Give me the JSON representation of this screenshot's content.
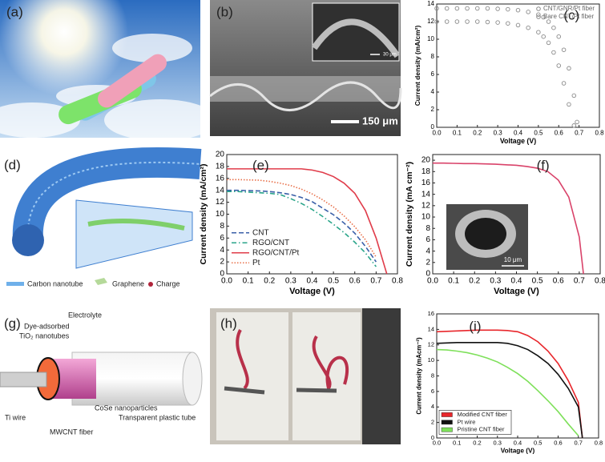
{
  "panels": {
    "a": {
      "label": "(a)"
    },
    "b": {
      "label": "(b)",
      "inset_scale": "30 μm",
      "scale": "150 μm"
    },
    "d": {
      "label": "(d)",
      "legend": [
        "Carbon nanotube",
        "Graphene",
        "Charge"
      ]
    },
    "g": {
      "label": "(g)",
      "texts": [
        "Dye-adsorbed",
        "TiO₂ nanotubes",
        "Electrolyte",
        "Transparent plastic tube",
        "Ti wire",
        "MWCNT fiber",
        "CoSe nanoparticles"
      ]
    },
    "h": {
      "label": "(h)"
    }
  },
  "chart_data": [
    {
      "type": "scatter",
      "label": "(c)",
      "x_label": "Voltage (V)",
      "y_label": "Current density (mA/cm²)",
      "x": [
        0,
        0.05,
        0.1,
        0.15,
        0.2,
        0.25,
        0.3,
        0.35,
        0.4,
        0.45,
        0.5,
        0.525,
        0.55,
        0.575,
        0.6,
        0.625,
        0.65,
        0.675,
        0.69
      ],
      "series": [
        {
          "name": "CNT/GNR/Pt fiber",
          "color": "#8a8a8a",
          "values": [
            13.5,
            13.5,
            13.5,
            13.5,
            13.5,
            13.5,
            13.45,
            13.4,
            13.3,
            13.1,
            12.8,
            12.5,
            12.0,
            11.3,
            10.3,
            8.8,
            6.7,
            3.6,
            0.6
          ]
        },
        {
          "name": "Bare CNT/Pt fiber",
          "color": "#8a8a8a",
          "values": [
            12.0,
            12.0,
            12.0,
            12.0,
            12.0,
            11.95,
            11.9,
            11.8,
            11.6,
            11.3,
            10.8,
            10.3,
            9.6,
            8.5,
            7.0,
            5.0,
            2.6,
            0.2,
            null
          ]
        }
      ],
      "xlim": [
        0,
        0.8
      ],
      "xticks": [
        {
          "value": 0,
          "label": "0.0"
        },
        0.1,
        0.2,
        0.3,
        0.4,
        0.5,
        0.6,
        0.7,
        0.8
      ],
      "ylim": [
        0,
        14
      ],
      "yticks": [
        0,
        2,
        4,
        6,
        8,
        10,
        12,
        14
      ],
      "legend": "upper right"
    },
    {
      "type": "line",
      "label": "(e)",
      "x_label": "Voltage (V)",
      "y_label": "Current density (mA/cm²)",
      "x": [
        0,
        0.05,
        0.1,
        0.15,
        0.2,
        0.25,
        0.3,
        0.35,
        0.4,
        0.45,
        0.5,
        0.55,
        0.6,
        0.65,
        0.7,
        0.75
      ],
      "series": [
        {
          "name": "CNT",
          "color": "#3a5fa8",
          "linestyle": "dashed",
          "values": [
            14.0,
            14.0,
            13.95,
            13.9,
            13.8,
            13.6,
            13.3,
            12.8,
            12.1,
            11.0,
            9.9,
            8.5,
            6.8,
            4.6,
            2.0,
            null
          ]
        },
        {
          "name": "RGO/CNT",
          "color": "#2aa58a",
          "linestyle": "dashdot",
          "values": [
            13.8,
            13.8,
            13.7,
            13.6,
            13.5,
            13.3,
            12.6,
            11.8,
            10.8,
            9.6,
            8.3,
            6.9,
            5.3,
            3.5,
            1.2,
            null
          ]
        },
        {
          "name": "RGO/CNT/Pt",
          "color": "#e03c4a",
          "linestyle": "solid",
          "values": [
            17.6,
            17.6,
            17.6,
            17.6,
            17.6,
            17.6,
            17.6,
            17.6,
            17.4,
            17.0,
            16.3,
            15.2,
            13.5,
            10.6,
            6.0,
            0
          ]
        },
        {
          "name": "Pt",
          "color": "#e8704a",
          "linestyle": "dotted",
          "values": [
            15.8,
            15.8,
            15.75,
            15.7,
            15.5,
            15.2,
            14.8,
            14.2,
            13.4,
            12.4,
            11.2,
            9.7,
            7.9,
            5.7,
            2.8,
            null
          ]
        }
      ],
      "xlim": [
        0,
        0.8
      ],
      "xticks": [
        {
          "value": 0,
          "label": "0.0"
        },
        0.1,
        0.2,
        0.3,
        0.4,
        0.5,
        0.6,
        0.7,
        0.8
      ],
      "ylim": [
        0,
        20
      ],
      "yticks": [
        0,
        2,
        4,
        6,
        8,
        10,
        12,
        14,
        16,
        18,
        20
      ],
      "legend": "lower left",
      "legend_style": "line"
    },
    {
      "type": "line",
      "label": "(f)",
      "x_label": "Voltage (V)",
      "y_label": "Current density (mA cm⁻²)",
      "inset_scale": "10 μm",
      "x": [
        0,
        0.05,
        0.1,
        0.15,
        0.2,
        0.25,
        0.3,
        0.35,
        0.4,
        0.45,
        0.5,
        0.55,
        0.6,
        0.65,
        0.7,
        0.72
      ],
      "series": [
        {
          "color": "#d9436a",
          "linestyle": "solid",
          "values": [
            19.5,
            19.5,
            19.45,
            19.4,
            19.4,
            19.35,
            19.3,
            19.2,
            19.1,
            18.9,
            18.6,
            18.0,
            16.5,
            13.5,
            6.5,
            0
          ]
        }
      ],
      "xlim": [
        0,
        0.8
      ],
      "xticks": [
        {
          "value": 0,
          "label": "0.0"
        },
        0.1,
        0.2,
        0.3,
        0.4,
        0.5,
        0.6,
        0.7,
        0.8
      ],
      "ylim": [
        0,
        21
      ],
      "yticks": [
        0,
        2,
        4,
        6,
        8,
        10,
        12,
        14,
        16,
        18,
        20
      ]
    },
    {
      "type": "line",
      "label": "(i)",
      "x_label": "Voltage (V)",
      "y_label": "Current density (mAcm⁻²)",
      "x": [
        0,
        0.05,
        0.1,
        0.15,
        0.2,
        0.25,
        0.3,
        0.35,
        0.4,
        0.45,
        0.5,
        0.55,
        0.6,
        0.65,
        0.7,
        0.72
      ],
      "series": [
        {
          "name": "Modified CNT fiber",
          "color": "#e8262b",
          "linestyle": "solid",
          "values": [
            13.7,
            13.75,
            13.8,
            13.85,
            13.9,
            13.9,
            13.9,
            13.85,
            13.7,
            13.2,
            12.4,
            11.2,
            9.6,
            7.4,
            4.6,
            0
          ]
        },
        {
          "name": "Pt wire",
          "color": "#111111",
          "linestyle": "solid",
          "values": [
            12.2,
            12.25,
            12.3,
            12.3,
            12.3,
            12.3,
            12.3,
            12.2,
            11.9,
            11.4,
            10.6,
            9.6,
            8.2,
            6.4,
            4.0,
            0
          ]
        },
        {
          "name": "Pristine CNT fiber",
          "color": "#7ee05a",
          "linestyle": "solid",
          "values": [
            11.4,
            11.35,
            11.2,
            11.0,
            10.7,
            10.3,
            9.8,
            9.1,
            8.3,
            7.3,
            6.1,
            4.8,
            3.4,
            1.8,
            0.3,
            null
          ]
        }
      ],
      "xlim": [
        0,
        0.8
      ],
      "xticks": [
        {
          "value": 0,
          "label": "0.0"
        },
        0.1,
        0.2,
        0.3,
        0.4,
        0.5,
        0.6,
        0.7,
        0.8
      ],
      "ylim": [
        0,
        16
      ],
      "yticks": [
        0,
        2,
        4,
        6,
        8,
        10,
        12,
        14,
        16
      ],
      "legend": "lower left",
      "legend_style": "patch"
    }
  ]
}
